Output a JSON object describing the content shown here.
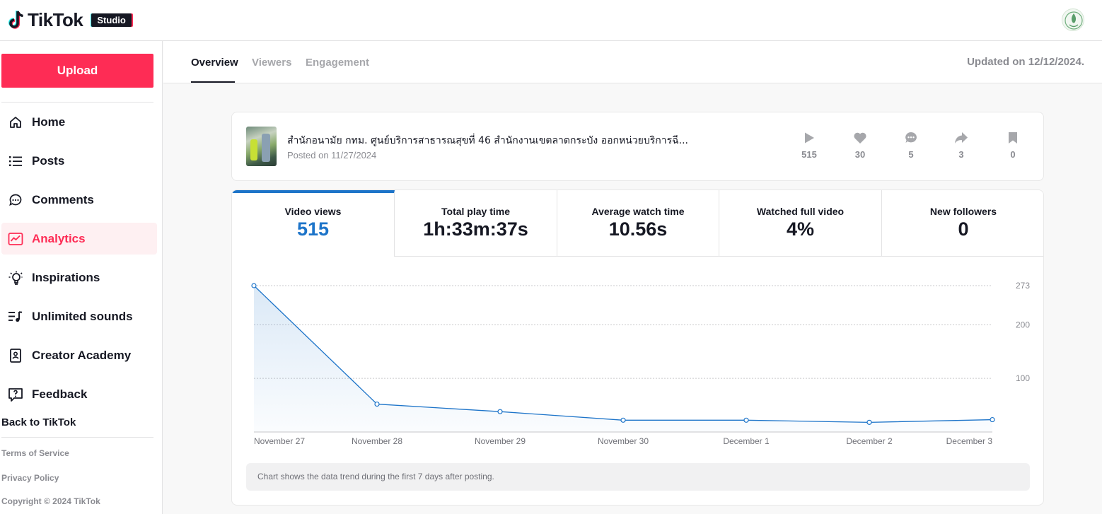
{
  "header": {
    "logo_text": "TikTok",
    "badge": "Studio"
  },
  "sidebar": {
    "upload_label": "Upload",
    "items": [
      {
        "label": "Home",
        "icon": "home-icon"
      },
      {
        "label": "Posts",
        "icon": "list-icon"
      },
      {
        "label": "Comments",
        "icon": "comment-icon"
      },
      {
        "label": "Analytics",
        "icon": "analytics-icon",
        "active": true
      },
      {
        "label": "Inspirations",
        "icon": "lightbulb-icon"
      },
      {
        "label": "Unlimited sounds",
        "icon": "music-list-icon"
      },
      {
        "label": "Creator Academy",
        "icon": "book-icon"
      },
      {
        "label": "Feedback",
        "icon": "feedback-icon"
      }
    ],
    "back_link": "Back to TikTok",
    "footer": {
      "terms": "Terms of Service",
      "privacy": "Privacy Policy",
      "copyright": "Copyright © 2024 TikTok"
    }
  },
  "tabs": {
    "overview": "Overview",
    "viewers": "Viewers",
    "engagement": "Engagement",
    "active": "overview"
  },
  "updated_text": "Updated on 12/12/2024.",
  "video": {
    "title": "สำนักอนามัย กทม. ศูนย์บริการสาธารณสุขที่ 46 สำนักงานเขตลาดกระบัง ออกหน่วยบริการฉี...",
    "posted": "Posted on 11/27/2024",
    "stats": {
      "plays": "515",
      "likes": "30",
      "comments": "5",
      "shares": "3",
      "saves": "0"
    }
  },
  "metrics": [
    {
      "label": "Video views",
      "value": "515",
      "selected": true
    },
    {
      "label": "Total play time",
      "value": "1h:33m:37s"
    },
    {
      "label": "Average watch time",
      "value": "10.56s"
    },
    {
      "label": "Watched full video",
      "value": "4%"
    },
    {
      "label": "New followers",
      "value": "0"
    }
  ],
  "chart_note": "Chart shows the data trend during the first 7 days after posting.",
  "colors": {
    "accent": "#fe2c55",
    "chart_line": "#1d74c9"
  },
  "chart_data": {
    "type": "area",
    "categories": [
      "November 27",
      "November 28",
      "November 29",
      "November 30",
      "December 1",
      "December 2",
      "December 3"
    ],
    "series": [
      {
        "values": [
          273,
          52,
          38,
          22,
          22,
          18,
          23
        ]
      }
    ],
    "yticks": [
      100,
      200,
      273
    ],
    "ylim": [
      0,
      273
    ],
    "grid": true,
    "y_axis_position": "right"
  }
}
